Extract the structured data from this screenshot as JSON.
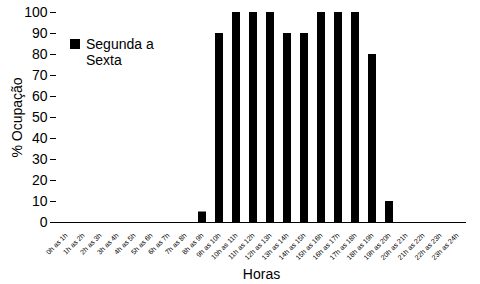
{
  "chart_data": {
    "type": "bar",
    "xlabel": "Horas",
    "ylabel": "% Ocupação",
    "categories": [
      "0h as 1h",
      "1h as 2h",
      "2h as 3h",
      "3h as 4h",
      "4h as 5h",
      "5h as 6h",
      "6h as 7h",
      "7h as 8h",
      "8h as 9h",
      "9h as 10h",
      "10h as 11h",
      "11h as 12h",
      "12h as 13h",
      "13h as 14h",
      "14h as 15h",
      "15h as 16h",
      "16h as 17h",
      "17h as 18h",
      "18h as 19h",
      "19h as 20h",
      "20h as 21h",
      "21h as 22h",
      "22h as 23h",
      "23h as 24h"
    ],
    "series": [
      {
        "name": "Segunda a Sexta",
        "color": "#000000",
        "values": [
          0,
          0,
          0,
          0,
          0,
          0,
          0,
          0,
          5,
          90,
          100,
          100,
          100,
          90,
          90,
          100,
          100,
          100,
          80,
          10,
          0,
          0,
          0,
          0
        ]
      }
    ],
    "ylim": [
      0,
      100
    ],
    "yticks": [
      0,
      10,
      20,
      30,
      40,
      50,
      60,
      70,
      80,
      90,
      100
    ],
    "grid": false,
    "legend": "top-left"
  }
}
